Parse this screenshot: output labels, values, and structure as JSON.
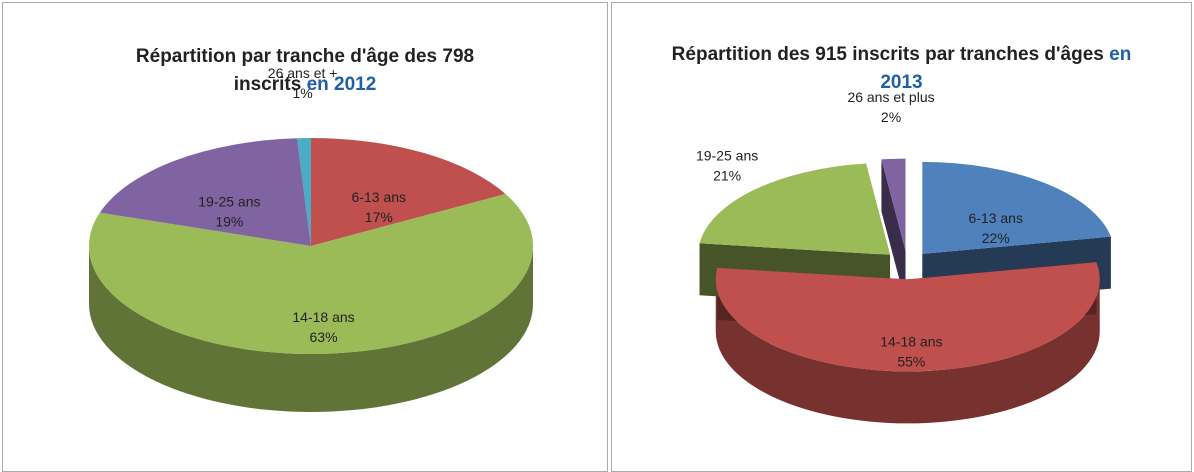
{
  "chart_data": [
    {
      "type": "pie",
      "title": "Répartition par tranche d'âge des 798 inscrits",
      "title_suffix": "en 2012",
      "categories": [
        "6-13 ans",
        "14-18 ans",
        "19-25 ans",
        "26 ans et +"
      ],
      "values": [
        17,
        63,
        19,
        1
      ],
      "value_labels": [
        "17%",
        "63%",
        "19%",
        "1%"
      ],
      "colors": [
        "#c0504d",
        "#9bbb59",
        "#8064a2",
        "#4bacc6"
      ],
      "exploded": false
    },
    {
      "type": "pie",
      "title": "Répartition des 915 inscrits par tranches d'âges",
      "title_suffix": "en 2013",
      "categories": [
        "6-13 ans",
        "14-18 ans",
        "19-25 ans",
        "26 ans et plus"
      ],
      "values": [
        22,
        55,
        21,
        2
      ],
      "value_labels": [
        "22%",
        "55%",
        "21%",
        "2%"
      ],
      "colors": [
        "#4f81bd",
        "#c0504d",
        "#9bbb59",
        "#8064a2"
      ],
      "exploded": true
    }
  ]
}
